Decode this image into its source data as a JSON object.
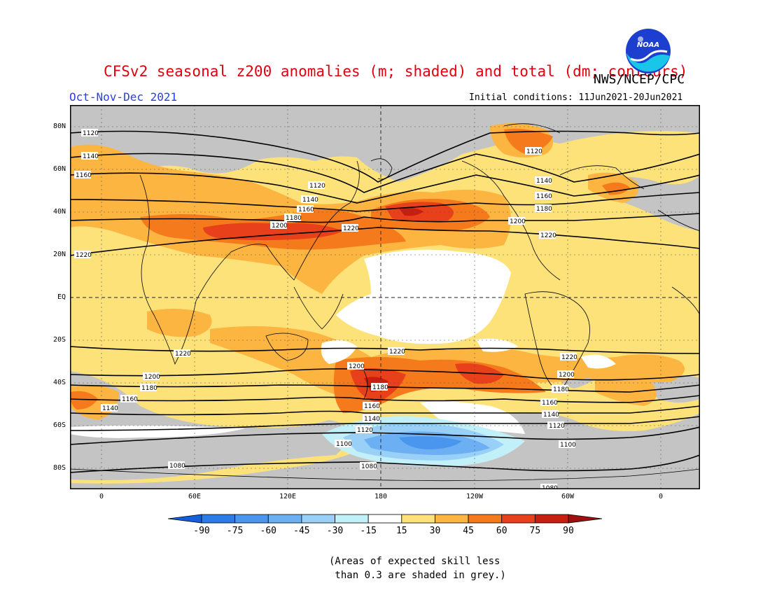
{
  "title": "CFSv2 seasonal z200 anomalies (m; shaded) and total (dm; contours)",
  "agency": "NWS/NCEP/CPC",
  "logo_text": "NOAA",
  "season": "Oct-Nov-Dec 2021",
  "initial_conditions": "Initial conditions: 11Jun2021-20Jun2021",
  "latitude_labels": [
    "80N",
    "60N",
    "40N",
    "20N",
    "EQ",
    "20S",
    "40S",
    "60S",
    "80S"
  ],
  "longitude_labels": [
    "0",
    "60E",
    "120E",
    "180",
    "120W",
    "60W",
    "0"
  ],
  "contour_labels": [
    "1120",
    "1140",
    "1160",
    "1180",
    "1200",
    "1220",
    "1100",
    "1080"
  ],
  "colorbar": {
    "labels": [
      "-90",
      "-75",
      "-60",
      "-45",
      "-30",
      "-15",
      "15",
      "30",
      "45",
      "60",
      "75",
      "90"
    ],
    "colors": [
      "#1560d8",
      "#2b7ce8",
      "#4a95ee",
      "#6cb0f3",
      "#98d0f8",
      "#c2f0f8",
      "#ffffff",
      "#fde27a",
      "#fbb540",
      "#f57a1c",
      "#e8401a",
      "#c81e12",
      "#a01010"
    ]
  },
  "note": "(Areas of expected skill less\n than 0.3 are shaded in grey.)"
}
